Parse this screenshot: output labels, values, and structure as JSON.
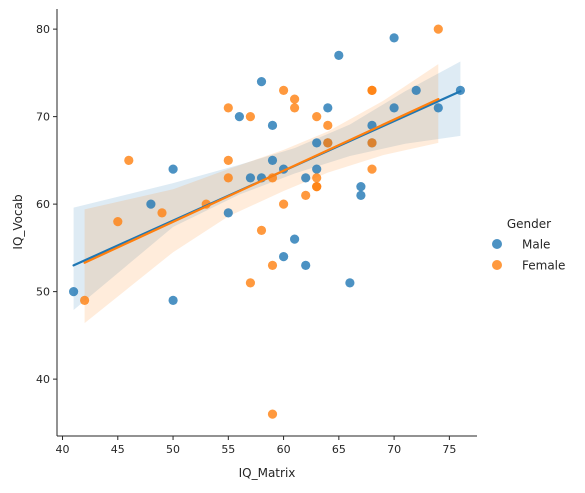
{
  "chart_data": {
    "type": "scatter",
    "xlabel": "IQ_Matrix",
    "ylabel": "IQ_Vocab",
    "xlim": [
      39.5,
      77.5
    ],
    "ylim": [
      33.5,
      82.3
    ],
    "x_ticks": [
      40,
      45,
      50,
      55,
      60,
      65,
      70,
      75
    ],
    "y_ticks": [
      40,
      50,
      60,
      70,
      80
    ],
    "grid": false,
    "legend": {
      "title": "Gender",
      "placement": "right"
    },
    "series": [
      {
        "name": "Male",
        "color": "#1f77b4",
        "points": [
          [
            41,
            50
          ],
          [
            48,
            60
          ],
          [
            50,
            64
          ],
          [
            50,
            49
          ],
          [
            55,
            59
          ],
          [
            56,
            70
          ],
          [
            57,
            63
          ],
          [
            58,
            74
          ],
          [
            58,
            63
          ],
          [
            59,
            69
          ],
          [
            59,
            65
          ],
          [
            60,
            64
          ],
          [
            60,
            54
          ],
          [
            61,
            56
          ],
          [
            62,
            63
          ],
          [
            62,
            53
          ],
          [
            63,
            67
          ],
          [
            63,
            64
          ],
          [
            64,
            71
          ],
          [
            64,
            67
          ],
          [
            65,
            77
          ],
          [
            66,
            51
          ],
          [
            67,
            62
          ],
          [
            67,
            61
          ],
          [
            68,
            69
          ],
          [
            68,
            67
          ],
          [
            70,
            79
          ],
          [
            70,
            71
          ],
          [
            72,
            73
          ],
          [
            74,
            71
          ],
          [
            76,
            73
          ]
        ],
        "fit": {
          "x0": 41,
          "y0": 53.0,
          "x1": 76,
          "y1": 72.9
        },
        "ci_band": {
          "x": [
            41,
            50,
            56,
            61,
            66,
            71,
            76
          ],
          "lower": [
            47.9,
            57.4,
            61.1,
            63.5,
            65.5,
            66.9,
            67.8
          ],
          "upper": [
            59.6,
            62.4,
            64.5,
            66.4,
            69.1,
            72.9,
            76.3
          ]
        }
      },
      {
        "name": "Female",
        "color": "#ff7f0e",
        "points": [
          [
            42,
            49
          ],
          [
            45,
            58
          ],
          [
            46,
            65
          ],
          [
            49,
            59
          ],
          [
            53,
            60
          ],
          [
            55,
            71
          ],
          [
            55,
            65
          ],
          [
            55,
            63
          ],
          [
            57,
            70
          ],
          [
            57,
            51
          ],
          [
            58,
            57
          ],
          [
            59,
            63
          ],
          [
            59,
            53
          ],
          [
            59,
            36
          ],
          [
            60,
            73
          ],
          [
            60,
            60
          ],
          [
            61,
            72
          ],
          [
            61,
            71
          ],
          [
            62,
            61
          ],
          [
            63,
            70
          ],
          [
            63,
            63
          ],
          [
            63,
            62
          ],
          [
            63,
            62
          ],
          [
            64,
            69
          ],
          [
            64,
            67
          ],
          [
            68,
            73
          ],
          [
            68,
            73
          ],
          [
            68,
            67
          ],
          [
            68,
            64
          ],
          [
            74,
            80
          ]
        ],
        "fit": {
          "x0": 42,
          "y0": 53.3,
          "x1": 74,
          "y1": 72.0
        },
        "ci_band": {
          "x": [
            42,
            50,
            55,
            60,
            64,
            69,
            74
          ],
          "lower": [
            46.4,
            54.5,
            58.6,
            61.5,
            63.6,
            65.6,
            67.0
          ],
          "upper": [
            59.4,
            61.7,
            64.0,
            66.2,
            68.3,
            71.8,
            76.0
          ]
        }
      }
    ]
  }
}
